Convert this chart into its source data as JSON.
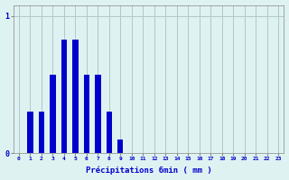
{
  "title": "",
  "xlabel": "Précipitations 6min ( mm )",
  "ylabel": "",
  "background_color": "#dff2f2",
  "bar_color": "#0000cc",
  "grid_color": "#b0c8c8",
  "text_color": "#0000cc",
  "categories": [
    0,
    1,
    2,
    3,
    4,
    5,
    6,
    7,
    8,
    9,
    10,
    11,
    12,
    13,
    14,
    15,
    16,
    17,
    18,
    19,
    20,
    21,
    22,
    23
  ],
  "values": [
    0,
    0.3,
    0.3,
    0.57,
    0.83,
    0.83,
    0.57,
    0.57,
    0.3,
    0.1,
    0,
    0,
    0,
    0,
    0,
    0,
    0,
    0,
    0,
    0,
    0,
    0,
    0,
    0
  ],
  "ylim": [
    0,
    1.08
  ],
  "yticks": [
    0,
    1
  ],
  "ytick_labels": [
    "0",
    "1"
  ],
  "xlim": [
    -0.5,
    23.5
  ],
  "bar_width": 0.5
}
